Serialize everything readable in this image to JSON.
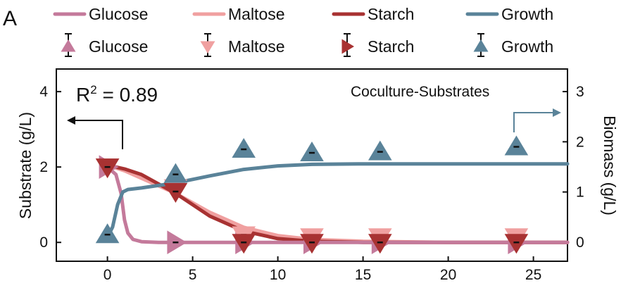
{
  "chart_data": {
    "type": "line",
    "panel_label": "A",
    "annotation": "Coculture-Substrates",
    "r2": {
      "text_base": "R",
      "text_exp": "2",
      "text_rest": " = 0.89"
    },
    "x_axis": {
      "range": [
        -3,
        27
      ],
      "ticks": [
        0,
        5,
        10,
        15,
        20,
        25
      ]
    },
    "y_left": {
      "label": "Substrate (g/L)",
      "range": [
        -0.5,
        4.6
      ],
      "ticks": [
        0,
        2,
        4
      ]
    },
    "y_right": {
      "label": "Biomass (g/L)",
      "range": [
        -0.38,
        3.45
      ],
      "ticks": [
        0,
        1,
        2,
        3
      ]
    },
    "legend": {
      "placement": "top",
      "lines": [
        "Glucose",
        "Maltose",
        "Starch",
        "Growth"
      ],
      "markers": [
        "Glucose",
        "Maltose",
        "Starch",
        "Growth"
      ]
    },
    "colors": {
      "glucose": "#c47a9b",
      "maltose": "#f0a0a0",
      "starch": "#a83232",
      "growth": "#5a8399"
    },
    "series": [
      {
        "name": "Glucose",
        "key": "glucose",
        "axis": "left",
        "marker": "triangle-right",
        "x": [
          0,
          4,
          8,
          12,
          16,
          24
        ],
        "y": [
          2.0,
          0.0,
          0.0,
          0.0,
          0.0,
          0.0
        ],
        "fit_x": [
          0,
          0.5,
          0.8,
          1.0,
          1.2,
          1.5,
          2.0,
          3.0,
          5.0,
          27
        ],
        "fit_y": [
          2.0,
          1.8,
          1.3,
          0.6,
          0.25,
          0.08,
          0.02,
          0.0,
          0.0,
          0.0
        ]
      },
      {
        "name": "Maltose",
        "key": "maltose",
        "axis": "left",
        "marker": "triangle-down",
        "x": [
          0,
          4,
          8,
          12,
          16,
          24
        ],
        "y": [
          2.0,
          1.45,
          0.2,
          0.15,
          0.15,
          0.15
        ],
        "fit_x": [
          0,
          1,
          2,
          4,
          6,
          8,
          10,
          12,
          15,
          20,
          27
        ],
        "fit_y": [
          2.05,
          1.9,
          1.7,
          1.3,
          0.8,
          0.4,
          0.18,
          0.08,
          0.03,
          0.0,
          0.0
        ]
      },
      {
        "name": "Starch",
        "key": "starch",
        "axis": "left",
        "marker": "triangle-down",
        "x": [
          0,
          4,
          8,
          12,
          16,
          24
        ],
        "y": [
          2.0,
          1.35,
          0.0,
          0.0,
          0.0,
          0.0
        ],
        "fit_x": [
          0,
          1,
          2,
          4,
          6,
          8,
          10,
          12,
          15,
          20,
          27
        ],
        "fit_y": [
          2.05,
          1.95,
          1.8,
          1.3,
          0.7,
          0.3,
          0.1,
          0.03,
          0.0,
          0.0,
          0.0
        ]
      },
      {
        "name": "Growth",
        "key": "growth",
        "axis": "right",
        "marker": "triangle-up",
        "x": [
          0,
          4,
          8,
          12,
          16,
          24
        ],
        "y": [
          0.15,
          1.35,
          1.85,
          1.78,
          1.8,
          1.9
        ],
        "fit_x": [
          0,
          0.3,
          0.6,
          0.9,
          1.2,
          2,
          4,
          6,
          8,
          10,
          12,
          15,
          20,
          27
        ],
        "fit_y": [
          0.1,
          0.3,
          0.75,
          1.0,
          1.05,
          1.08,
          1.18,
          1.32,
          1.45,
          1.52,
          1.55,
          1.56,
          1.56,
          1.56
        ]
      }
    ]
  }
}
